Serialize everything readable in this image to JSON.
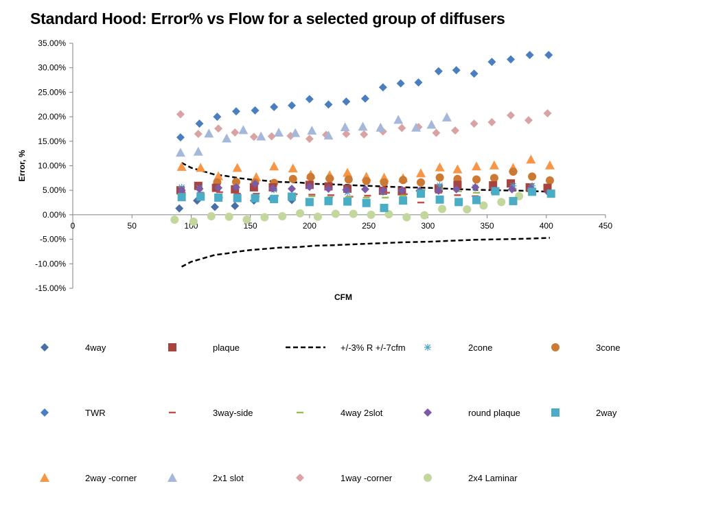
{
  "chart_data": {
    "type": "scatter",
    "title": "Standard Hood: Error%  vs Flow for a selected group of diffusers",
    "xlabel": "CFM",
    "ylabel": "Error, %",
    "xlim": [
      0,
      450
    ],
    "ylim": [
      -15,
      35
    ],
    "x_ticks": [
      "0",
      "50",
      "100",
      "150",
      "200",
      "250",
      "300",
      "350",
      "400",
      "450"
    ],
    "y_ticks": [
      "35.00%",
      "30.00%",
      "25.00%",
      "20.00%",
      "15.00%",
      "10.00%",
      "5.00%",
      "0.00%",
      "-5.00%",
      "-10.00%",
      "-15.00%"
    ],
    "grid": "none",
    "legend_position": "bottom",
    "series": [
      {
        "name": "4way",
        "marker": "diamond",
        "color": "#4a6fa5",
        "x": [
          90,
          105,
          120,
          137,
          153,
          168,
          185
        ],
        "y": [
          1.3,
          2.9,
          1.6,
          1.8,
          2.9,
          3.3,
          3.0
        ]
      },
      {
        "name": "plaque",
        "marker": "square",
        "color": "#a84440",
        "x": [
          91,
          106,
          121,
          137,
          153,
          169,
          200,
          216,
          232,
          262,
          278,
          309,
          325,
          355,
          370,
          386,
          401
        ],
        "y": [
          5.0,
          5.9,
          5.5,
          5.2,
          5.6,
          5.6,
          6.1,
          5.8,
          5.3,
          4.9,
          4.8,
          5.4,
          6.1,
          6.0,
          6.4,
          5.6,
          5.5
        ]
      },
      {
        "name": "+/-3% R +/-7cfm",
        "marker": "dashline",
        "color": "#000000",
        "x": [
          92,
          100,
          110,
          120,
          130,
          140,
          150,
          160,
          175,
          190,
          205,
          220,
          240,
          260,
          280,
          300,
          320,
          340,
          360,
          380,
          403
        ],
        "upper": [
          10.6,
          9.6,
          8.9,
          8.2,
          7.9,
          7.5,
          7.2,
          7.0,
          6.7,
          6.6,
          6.3,
          6.2,
          6.0,
          5.8,
          5.6,
          5.5,
          5.3,
          5.1,
          5.0,
          4.9,
          4.7
        ],
        "lower": [
          -10.6,
          -9.6,
          -8.9,
          -8.2,
          -7.9,
          -7.5,
          -7.2,
          -7.0,
          -6.7,
          -6.6,
          -6.3,
          -6.2,
          -6.0,
          -5.8,
          -5.6,
          -5.5,
          -5.3,
          -5.1,
          -5.0,
          -4.9,
          -4.7
        ]
      },
      {
        "name": "2cone",
        "marker": "star",
        "color": "#4aa3c8",
        "x": [
          92,
          107,
          170,
          232,
          262,
          310,
          340,
          372,
          388
        ],
        "y": [
          5.6,
          5.4,
          5.1,
          4.6,
          4.6,
          6.0,
          5.6,
          5.9,
          5.9
        ]
      },
      {
        "name": "3cone",
        "marker": "circle",
        "color": "#cc7a33",
        "x": [
          92,
          122,
          138,
          154,
          170,
          186,
          201,
          217,
          233,
          248,
          263,
          279,
          294,
          310,
          325,
          341,
          356,
          372,
          388,
          403
        ],
        "y": [
          4.3,
          6.6,
          6.7,
          6.6,
          6.5,
          7.3,
          7.7,
          7.4,
          7.2,
          6.9,
          6.6,
          7.1,
          6.6,
          7.6,
          7.3,
          7.2,
          7.5,
          8.8,
          7.8,
          7.0
        ]
      },
      {
        "name": "TWR",
        "marker": "diamond",
        "color": "#4a7ebf",
        "x": [
          91,
          107,
          122,
          138,
          154,
          170,
          185,
          200,
          216,
          231,
          247,
          262,
          277,
          292,
          309,
          324,
          339,
          354,
          370,
          386,
          402
        ],
        "y": [
          15.8,
          18.6,
          20.0,
          21.1,
          21.3,
          22.0,
          22.3,
          23.6,
          22.5,
          23.1,
          23.7,
          26.0,
          26.8,
          27.0,
          29.3,
          29.5,
          28.8,
          31.2,
          31.7,
          32.6,
          32.6
        ]
      },
      {
        "name": "3way-side",
        "marker": "dash",
        "color": "#c0504d",
        "x": [
          92,
          108,
          124,
          139,
          155,
          171,
          187,
          202,
          218,
          234,
          249,
          265,
          280,
          294,
          309,
          325,
          340,
          356,
          372,
          388,
          403
        ],
        "y": [
          4.6,
          4.5,
          4.6,
          4.3,
          4.3,
          3.9,
          4.2,
          4.1,
          4.0,
          3.7,
          3.9,
          4.5,
          4.2,
          2.5,
          4.5,
          4.0,
          3.8,
          4.5,
          5.0,
          4.6,
          4.8
        ]
      },
      {
        "name": "4way 2slot",
        "marker": "dash",
        "color": "#9bbb59",
        "x": [
          92,
          108,
          124,
          139,
          155,
          171,
          186,
          202,
          217,
          233,
          248,
          264,
          279,
          295,
          310,
          326,
          341,
          357,
          372,
          387
        ],
        "y": [
          3.2,
          3.3,
          3.5,
          3.9,
          3.7,
          3.9,
          3.8,
          3.8,
          3.6,
          3.6,
          3.5,
          3.5,
          3.9,
          5.1,
          5.2,
          4.8,
          4.5,
          4.5,
          5.3,
          5.1
        ]
      },
      {
        "name": "round plaque",
        "marker": "diamond",
        "color": "#7b5aa6",
        "x": [
          92,
          107,
          123,
          138,
          154,
          169,
          185,
          200,
          216,
          231,
          247,
          262,
          278,
          293,
          309,
          324,
          340,
          356,
          371,
          387,
          402
        ],
        "y": [
          5.0,
          5.3,
          5.5,
          5.6,
          6.3,
          5.4,
          5.3,
          5.7,
          5.3,
          5.1,
          5.2,
          5.0,
          5.0,
          4.9,
          4.9,
          5.2,
          5.6,
          5.0,
          5.2,
          5.4,
          4.5
        ]
      },
      {
        "name": "2way",
        "marker": "square",
        "color": "#4bacc6",
        "x": [
          92,
          108,
          123,
          139,
          154,
          170,
          185,
          200,
          216,
          232,
          248,
          263,
          279,
          294,
          310,
          326,
          341,
          357,
          372,
          388,
          404
        ],
        "y": [
          3.6,
          3.7,
          3.5,
          3.4,
          3.4,
          3.2,
          3.7,
          2.6,
          2.8,
          2.7,
          2.4,
          1.4,
          2.9,
          4.3,
          3.1,
          2.6,
          3.0,
          4.8,
          2.8,
          4.7,
          4.3
        ]
      },
      {
        "name": "2way -corner",
        "marker": "triangle",
        "color": "#f79646",
        "x": [
          92,
          108,
          123,
          139,
          155,
          170,
          186,
          201,
          217,
          232,
          248,
          263,
          279,
          294,
          310,
          325,
          341,
          356,
          372,
          387,
          403
        ],
        "y": [
          9.8,
          9.6,
          7.9,
          9.6,
          7.7,
          9.9,
          9.5,
          8.2,
          8.1,
          8.6,
          7.8,
          7.6,
          7.5,
          8.5,
          9.7,
          9.3,
          9.9,
          10.1,
          9.6,
          11.3,
          10.1
        ]
      },
      {
        "name": "2x1 slot",
        "marker": "triangle",
        "color": "#a6b8da",
        "x": [
          91,
          106,
          115,
          130,
          144,
          159,
          174,
          188,
          202,
          216,
          230,
          245,
          260,
          275,
          290,
          303,
          316
        ],
        "y": [
          12.7,
          12.9,
          16.6,
          15.6,
          17.3,
          16.0,
          16.8,
          16.7,
          17.2,
          16.2,
          17.9,
          18.0,
          17.8,
          19.4,
          17.8,
          18.4,
          19.9
        ]
      },
      {
        "name": "1way -corner",
        "marker": "diamond",
        "color": "#d9a3a3",
        "x": [
          91,
          106,
          123,
          137,
          153,
          168,
          184,
          200,
          214,
          231,
          246,
          262,
          278,
          292,
          307,
          323,
          339,
          354,
          370,
          385,
          401
        ],
        "y": [
          20.5,
          16.5,
          17.6,
          16.8,
          15.9,
          16.0,
          16.1,
          15.5,
          16.3,
          16.5,
          16.4,
          17.0,
          17.7,
          17.9,
          16.7,
          17.2,
          18.6,
          18.9,
          20.3,
          19.3,
          20.7
        ]
      },
      {
        "name": "2x4 Laminar",
        "marker": "circle",
        "color": "#c3d69b",
        "x": [
          86,
          102,
          117,
          132,
          147,
          162,
          177,
          192,
          207,
          222,
          237,
          252,
          267,
          282,
          297,
          312,
          333,
          347,
          362,
          377
        ],
        "y": [
          -1.0,
          -1.4,
          -0.3,
          -0.4,
          -1.0,
          -0.5,
          -0.3,
          0.3,
          -0.4,
          0.2,
          0.2,
          0.0,
          0.1,
          -0.5,
          -0.1,
          1.2,
          1.1,
          1.9,
          2.6,
          3.8
        ]
      }
    ]
  }
}
